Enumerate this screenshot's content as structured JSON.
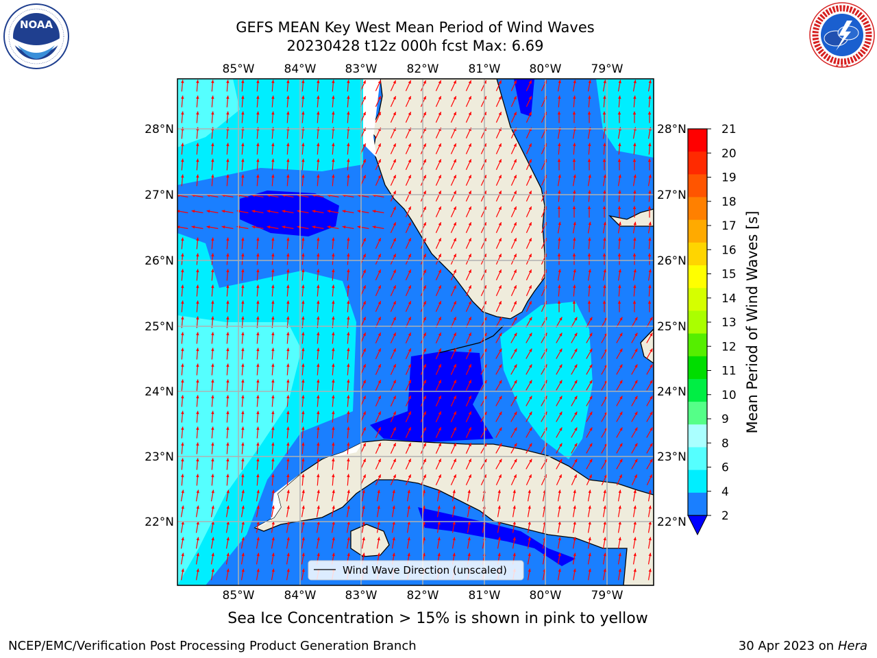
{
  "header": {
    "title_line1": "GEFS MEAN Key West Mean Period of Wind Waves",
    "title_line2": "20230428 t12z 000h fcst   Max: 6.69"
  },
  "logos": {
    "left": {
      "name": "NOAA",
      "text": "NOAA",
      "ring_text": "NATIONAL OCEANIC AND ATMOSPHERIC ADMINISTRATION · U.S. DEPARTMENT OF COMMERCE"
    },
    "right": {
      "name": "National Weather Service",
      "ring_text": "NATIONAL WEATHER SERVICE"
    }
  },
  "map": {
    "lon_labels": [
      "85°W",
      "84°W",
      "83°W",
      "82°W",
      "81°W",
      "80°W",
      "79°W"
    ],
    "lat_labels": [
      "28°N",
      "27°N",
      "26°N",
      "25°N",
      "24°N",
      "23°N",
      "22°N"
    ],
    "legend_label": "Wind Wave Direction (unscaled)",
    "land_color": "#efecdc",
    "arrow_color": "#ff0000"
  },
  "colorbar": {
    "label": "Mean Period of Wind Waves [s]",
    "ticks": [
      "21",
      "20",
      "19",
      "18",
      "17",
      "16",
      "15",
      "14",
      "13",
      "12",
      "11",
      "10",
      "9",
      "8",
      "6",
      "4",
      "2"
    ],
    "colors": [
      "#ff0000",
      "#ff2a00",
      "#ff5500",
      "#ff8000",
      "#ffaa00",
      "#ffd500",
      "#ffff00",
      "#d5ff00",
      "#aaff00",
      "#55ee00",
      "#00dd00",
      "#00ee44",
      "#55ff88",
      "#aaffff",
      "#55ffff",
      "#00eeff",
      "#1a7fff",
      "#0000ff"
    ]
  },
  "notes": {
    "sea_ice": "Sea Ice Concentration > 15% is shown in pink to yellow",
    "footer_left": "NCEP/EMC/Verification Post Processing Product Generation Branch",
    "footer_date": "30 Apr 2023 on ",
    "footer_machine": "Hera"
  }
}
